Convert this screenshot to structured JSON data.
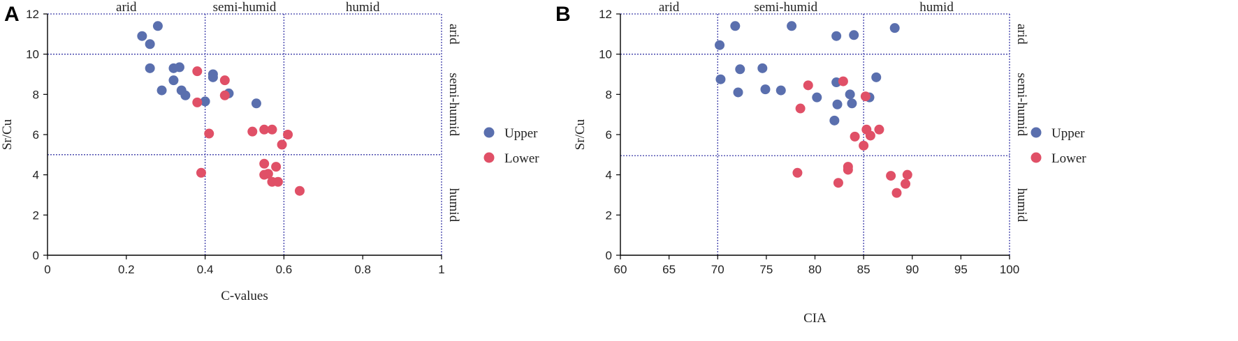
{
  "colors": {
    "upper": "#5a6fae",
    "lower": "#e05067",
    "divider": "#3b3ba8",
    "axis": "#000000",
    "text": "#222222"
  },
  "chart_data": [
    {
      "panel_label": "A",
      "type": "scatter",
      "xlabel": "C-values",
      "ylabel": "Sr/Cu",
      "xlim": [
        0,
        1
      ],
      "ylim": [
        0,
        12
      ],
      "xticks": [
        0,
        0.2,
        0.4,
        0.6,
        0.8,
        1
      ],
      "xtick_labels": [
        "0",
        "0.2",
        "0.4",
        "0.6",
        "0.8",
        "1"
      ],
      "yticks": [
        0,
        2,
        4,
        6,
        8,
        10,
        12
      ],
      "ytick_labels": [
        "0",
        "2",
        "4",
        "6",
        "8",
        "10",
        "12"
      ],
      "x_dividers": [
        0.4,
        0.6
      ],
      "y_dividers": [
        5,
        10
      ],
      "top_zones": [
        {
          "label": "arid",
          "x": 0.2
        },
        {
          "label": "semi-humid",
          "x": 0.5
        },
        {
          "label": "humid",
          "x": 0.8
        }
      ],
      "right_zones": [
        {
          "label": "arid",
          "y": 11
        },
        {
          "label": "semi-humid",
          "y": 7.5
        },
        {
          "label": "humid",
          "y": 2.5
        }
      ],
      "legend": {
        "position": "right",
        "entries": [
          "Upper",
          "Lower"
        ]
      },
      "series": [
        {
          "name": "Upper",
          "points": [
            [
              0.24,
              10.9
            ],
            [
              0.28,
              11.4
            ],
            [
              0.26,
              10.5
            ],
            [
              0.26,
              9.3
            ],
            [
              0.32,
              9.3
            ],
            [
              0.335,
              9.35
            ],
            [
              0.32,
              8.7
            ],
            [
              0.29,
              8.2
            ],
            [
              0.34,
              8.2
            ],
            [
              0.35,
              7.95
            ],
            [
              0.42,
              9.0
            ],
            [
              0.42,
              8.85
            ],
            [
              0.46,
              8.05
            ],
            [
              0.53,
              7.55
            ],
            [
              0.4,
              7.65
            ]
          ]
        },
        {
          "name": "Lower",
          "points": [
            [
              0.38,
              9.15
            ],
            [
              0.45,
              8.7
            ],
            [
              0.45,
              7.95
            ],
            [
              0.38,
              7.6
            ],
            [
              0.41,
              6.05
            ],
            [
              0.52,
              6.15
            ],
            [
              0.55,
              6.25
            ],
            [
              0.57,
              6.25
            ],
            [
              0.61,
              6.0
            ],
            [
              0.595,
              5.5
            ],
            [
              0.39,
              4.1
            ],
            [
              0.55,
              4.55
            ],
            [
              0.58,
              4.4
            ],
            [
              0.55,
              4.0
            ],
            [
              0.56,
              4.05
            ],
            [
              0.57,
              3.65
            ],
            [
              0.585,
              3.65
            ],
            [
              0.64,
              3.2
            ]
          ]
        }
      ]
    },
    {
      "panel_label": "B",
      "type": "scatter",
      "xlabel": "CIA",
      "ylabel": "Sr/Cu",
      "xlim": [
        60,
        100
      ],
      "ylim": [
        0,
        12
      ],
      "xticks": [
        60,
        65,
        70,
        75,
        80,
        85,
        90,
        95,
        100
      ],
      "xtick_labels": [
        "60",
        "65",
        "70",
        "75",
        "80",
        "85",
        "90",
        "95",
        "100"
      ],
      "yticks": [
        0,
        2,
        4,
        6,
        8,
        10,
        12
      ],
      "ytick_labels": [
        "0",
        "2",
        "4",
        "6",
        "8",
        "10",
        "12"
      ],
      "x_dividers": [
        70,
        85
      ],
      "y_dividers": [
        4.95,
        10
      ],
      "top_zones": [
        {
          "label": "arid",
          "x": 65
        },
        {
          "label": "semi-humid",
          "x": 77
        },
        {
          "label": "humid",
          "x": 92.5
        }
      ],
      "right_zones": [
        {
          "label": "arid",
          "y": 11
        },
        {
          "label": "semi-humid",
          "y": 7.5
        },
        {
          "label": "humid",
          "y": 2.5
        }
      ],
      "legend": {
        "position": "right",
        "entries": [
          "Upper",
          "Lower"
        ]
      },
      "series": [
        {
          "name": "Upper",
          "points": [
            [
              70.2,
              10.45
            ],
            [
              71.8,
              11.4
            ],
            [
              77.6,
              11.4
            ],
            [
              82.2,
              10.9
            ],
            [
              84.0,
              10.95
            ],
            [
              88.2,
              11.3
            ],
            [
              70.3,
              8.75
            ],
            [
              72.3,
              9.25
            ],
            [
              74.6,
              9.3
            ],
            [
              72.1,
              8.1
            ],
            [
              74.9,
              8.25
            ],
            [
              76.5,
              8.2
            ],
            [
              80.2,
              7.85
            ],
            [
              82.2,
              8.6
            ],
            [
              82.3,
              7.5
            ],
            [
              83.6,
              8.0
            ],
            [
              83.8,
              7.55
            ],
            [
              85.6,
              7.85
            ],
            [
              86.3,
              8.85
            ],
            [
              82.0,
              6.7
            ]
          ]
        },
        {
          "name": "Lower",
          "points": [
            [
              82.9,
              8.65
            ],
            [
              79.3,
              8.45
            ],
            [
              78.5,
              7.3
            ],
            [
              85.2,
              7.9
            ],
            [
              85.3,
              6.25
            ],
            [
              85.7,
              5.95
            ],
            [
              86.6,
              6.25
            ],
            [
              84.1,
              5.9
            ],
            [
              85.0,
              5.45
            ],
            [
              78.2,
              4.1
            ],
            [
              83.4,
              4.4
            ],
            [
              83.4,
              4.25
            ],
            [
              82.4,
              3.6
            ],
            [
              87.8,
              3.95
            ],
            [
              89.5,
              4.0
            ],
            [
              89.3,
              3.55
            ],
            [
              88.4,
              3.1
            ]
          ]
        }
      ]
    }
  ]
}
